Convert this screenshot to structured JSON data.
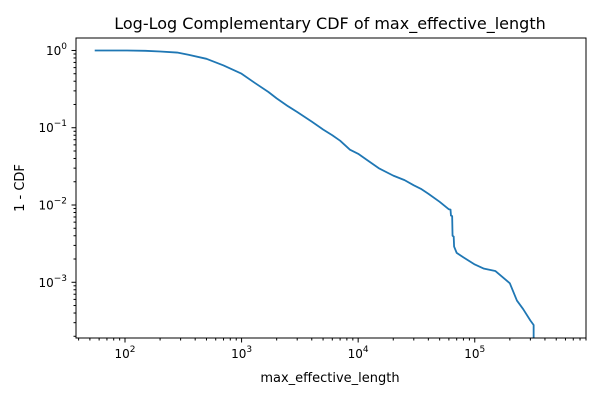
{
  "chart_data": {
    "type": "line",
    "title": "Log-Log Complementary CDF of max_effective_length",
    "xlabel": "max_effective_length",
    "ylabel": "1 - CDF",
    "xscale": "log",
    "yscale": "log",
    "xlim": [
      38,
      900000
    ],
    "ylim": [
      0.00019,
      1.45
    ],
    "grid": false,
    "x_major_ticks": [
      {
        "value": 100,
        "base": "10",
        "exp": "2"
      },
      {
        "value": 1000,
        "base": "10",
        "exp": "3"
      },
      {
        "value": 10000,
        "base": "10",
        "exp": "4"
      },
      {
        "value": 100000,
        "base": "10",
        "exp": "5"
      }
    ],
    "y_major_ticks": [
      {
        "value": 1,
        "base": "10",
        "exp": "0"
      },
      {
        "value": 0.1,
        "base": "10",
        "exp": "−1"
      },
      {
        "value": 0.01,
        "base": "10",
        "exp": "−2"
      },
      {
        "value": 0.001,
        "base": "10",
        "exp": "−3"
      }
    ],
    "series": [
      {
        "color": "#1f77b4",
        "x": [
          55,
          100,
          150,
          200,
          280,
          350,
          500,
          700,
          1000,
          1300,
          1700,
          2000,
          2500,
          3000,
          4000,
          5000,
          6000,
          7000,
          8500,
          10000,
          12000,
          15000,
          20000,
          25000,
          30000,
          35000,
          40000,
          50000,
          60000,
          62000,
          62500,
          64000,
          64500,
          66000,
          66500,
          70000,
          80000,
          100000,
          120000,
          150000,
          200000,
          230000,
          260000,
          300000,
          320000,
          320000
        ],
        "y": [
          1.0,
          1.0,
          0.99,
          0.97,
          0.94,
          0.88,
          0.78,
          0.64,
          0.5,
          0.38,
          0.29,
          0.24,
          0.19,
          0.16,
          0.12,
          0.095,
          0.08,
          0.068,
          0.052,
          0.046,
          0.038,
          0.03,
          0.024,
          0.021,
          0.018,
          0.016,
          0.014,
          0.011,
          0.0088,
          0.0087,
          0.0073,
          0.0072,
          0.004,
          0.0039,
          0.0029,
          0.0024,
          0.0021,
          0.0017,
          0.0015,
          0.0014,
          0.00097,
          0.00058,
          0.00045,
          0.00032,
          0.00028,
          0.00019
        ]
      }
    ]
  }
}
